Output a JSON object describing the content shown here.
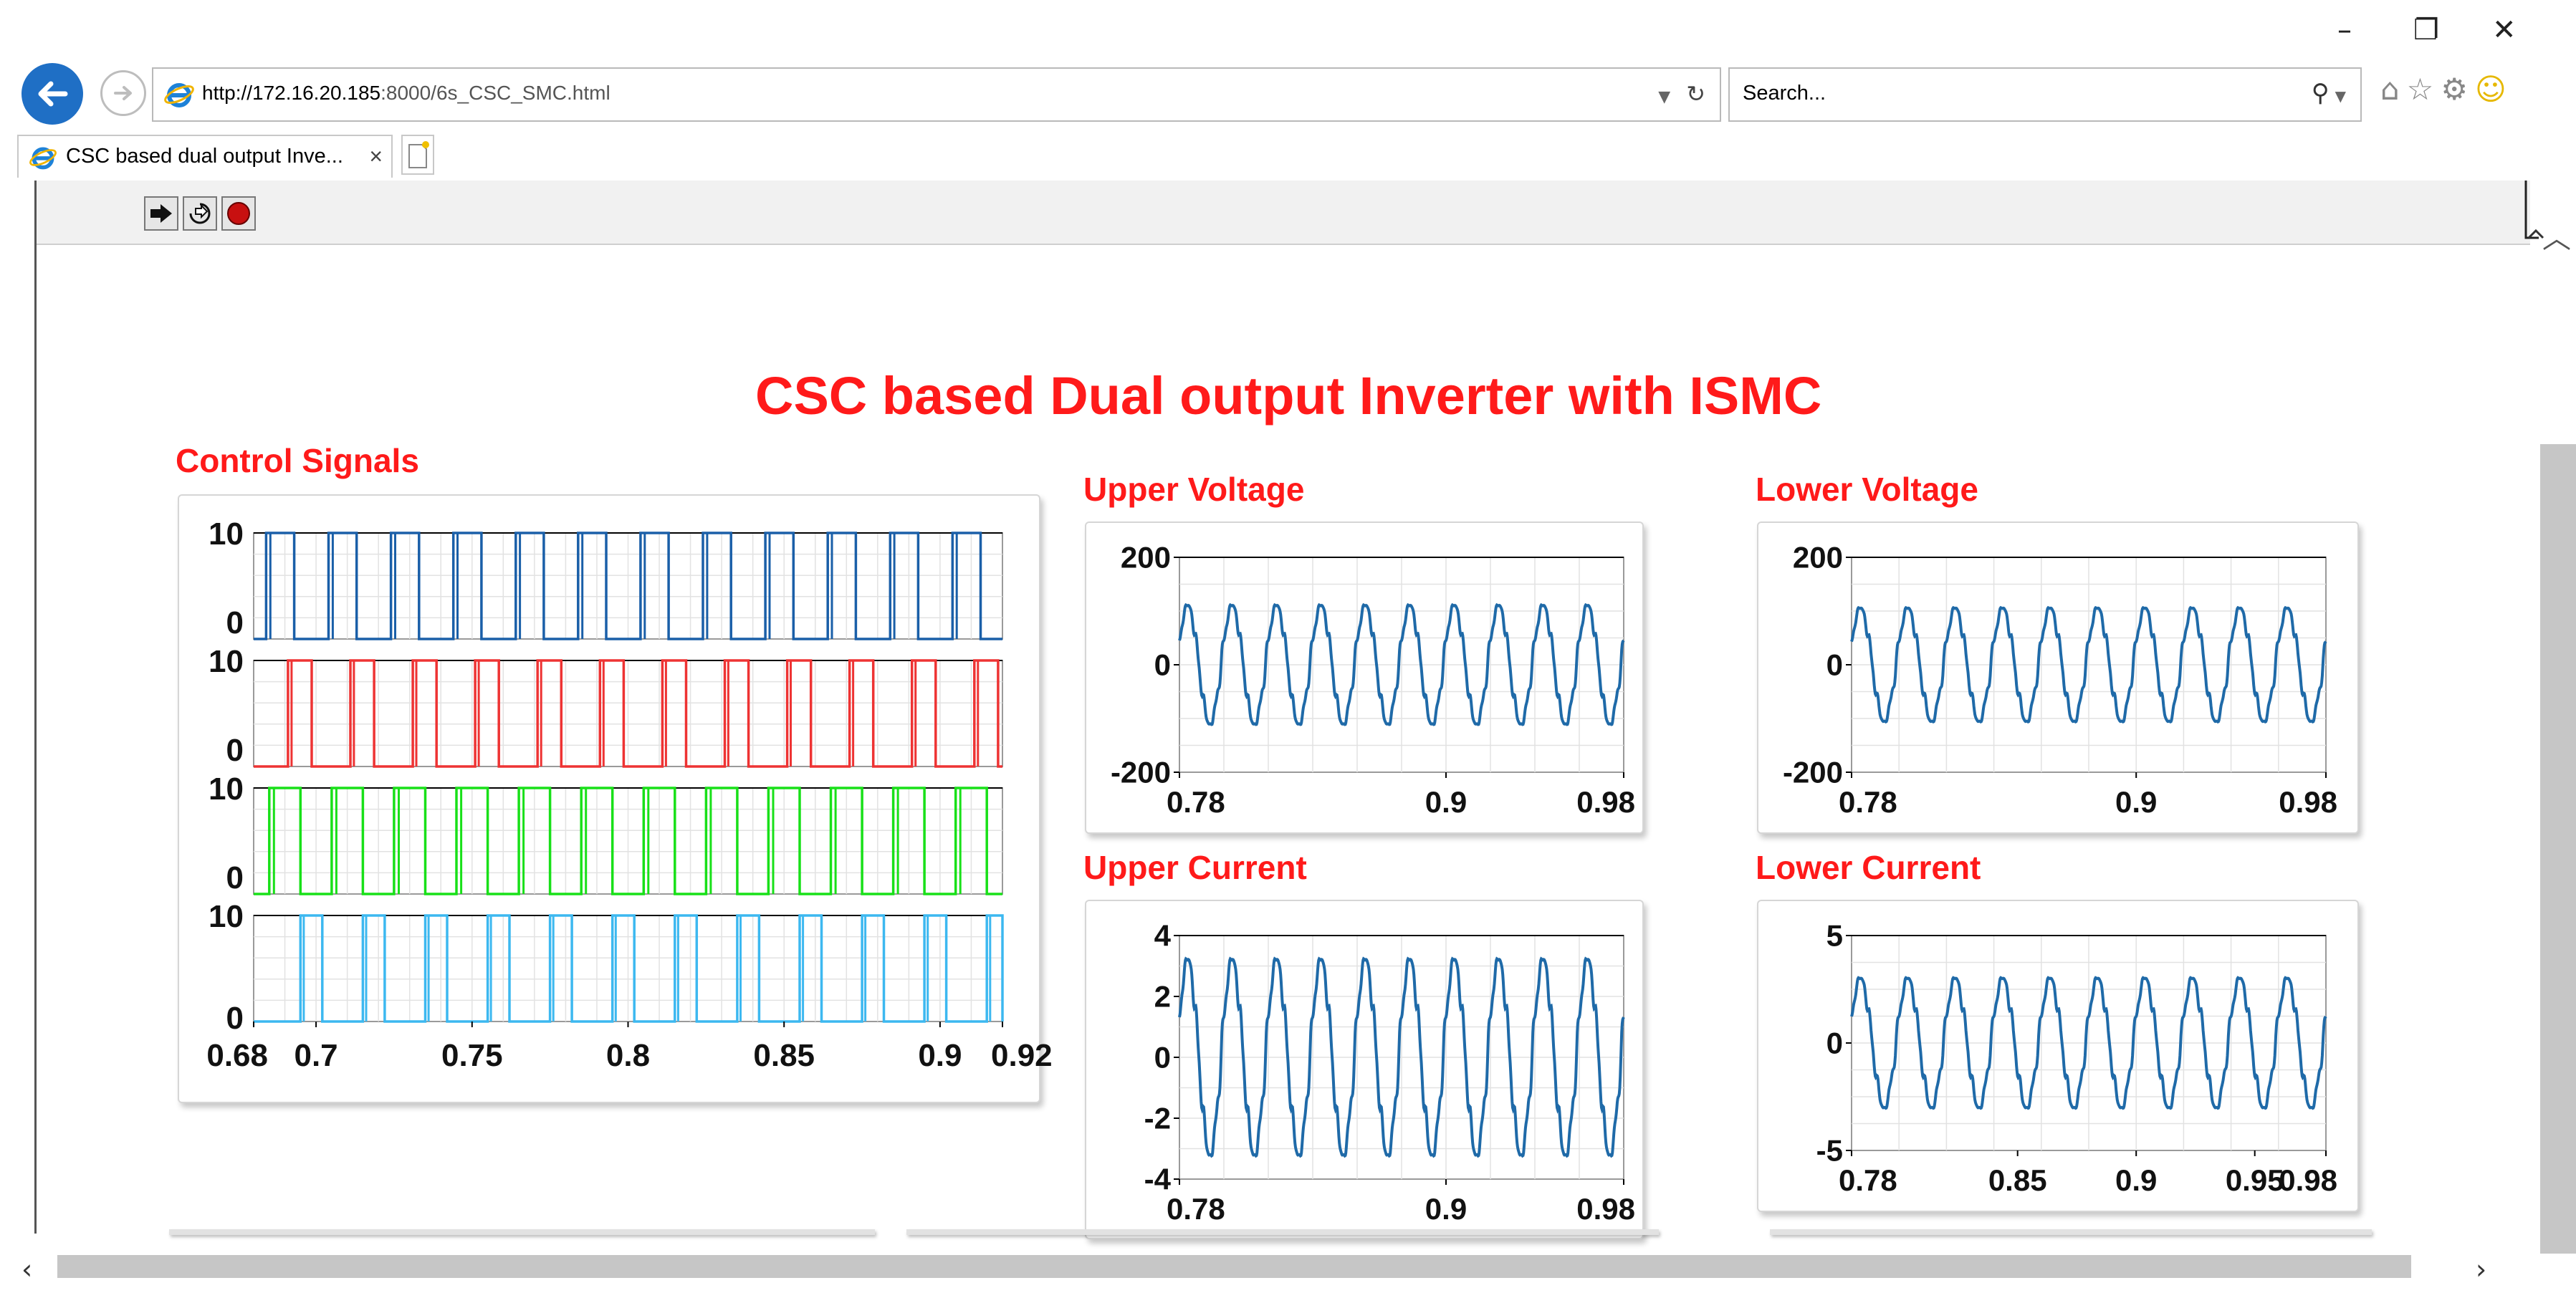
{
  "browser": {
    "url_host": "http://172.16.20.185",
    "url_rest": ":8000/6s_CSC_SMC.html",
    "search_placeholder": "Search...",
    "tab_title": "CSC based dual output Inve...",
    "tab_close": "×"
  },
  "page": {
    "title": "CSC based Dual output Inverter with ISMC",
    "labels": {
      "control": "Control Signals",
      "upper_voltage": "Upper Voltage",
      "lower_voltage": "Lower Voltage",
      "upper_current": "Upper Current",
      "lower_current": "Lower Current"
    }
  },
  "chart_data": [
    {
      "id": "control",
      "type": "line",
      "title": "Control Signals",
      "x_ticks": [
        "0.68",
        "0.7",
        "0.75",
        "0.8",
        "0.85",
        "0.9",
        "0.92"
      ],
      "xlim": [
        0.68,
        0.92
      ],
      "series": [
        {
          "color": "#1a5fa8",
          "ylim": [
            0,
            10
          ],
          "y_ticks": [
            "10",
            "0"
          ],
          "values": [
            0,
            10
          ]
        },
        {
          "color": "#ee3333",
          "ylim": [
            0,
            10
          ],
          "y_ticks": [
            "10",
            "0"
          ],
          "values": [
            0,
            10
          ]
        },
        {
          "color": "#18e018",
          "ylim": [
            0,
            10
          ],
          "y_ticks": [
            "10",
            "0"
          ],
          "values": [
            0,
            10
          ]
        },
        {
          "color": "#3cb8f0",
          "ylim": [
            0,
            10
          ],
          "y_ticks": [
            "10",
            "0"
          ],
          "values": [
            0,
            10
          ]
        }
      ],
      "signal_period": 0.02
    },
    {
      "id": "upper_voltage",
      "type": "line",
      "title": "Upper Voltage",
      "xlim": [
        0.78,
        0.98
      ],
      "ylim": [
        -200,
        200
      ],
      "x_ticks": [
        "0.78",
        "0.9",
        "0.98"
      ],
      "y_ticks": [
        "200",
        "0",
        "-200"
      ],
      "series": [
        {
          "color": "#1f6aa8",
          "amplitude": 110,
          "period": 0.02
        }
      ]
    },
    {
      "id": "lower_voltage",
      "type": "line",
      "title": "Lower Voltage",
      "xlim": [
        0.78,
        0.98
      ],
      "ylim": [
        -200,
        200
      ],
      "x_ticks": [
        "0.78",
        "0.9",
        "0.98"
      ],
      "y_ticks": [
        "200",
        "0",
        "-200"
      ],
      "series": [
        {
          "color": "#1f6aa8",
          "amplitude": 105,
          "period": 0.02
        }
      ]
    },
    {
      "id": "upper_current",
      "type": "line",
      "title": "Upper Current",
      "xlim": [
        0.78,
        0.98
      ],
      "ylim": [
        -4,
        4
      ],
      "x_ticks": [
        "0.78",
        "0.9",
        "0.98"
      ],
      "y_ticks": [
        "4",
        "2",
        "0",
        "-2",
        "-4"
      ],
      "series": [
        {
          "color": "#1f6aa8",
          "amplitude": 3.2,
          "period": 0.02
        }
      ]
    },
    {
      "id": "lower_current",
      "type": "line",
      "title": "Lower Current",
      "xlim": [
        0.78,
        0.98
      ],
      "ylim": [
        -5,
        5
      ],
      "x_ticks": [
        "0.78",
        "0.85",
        "0.9",
        "0.95",
        "0.98"
      ],
      "y_ticks": [
        "5",
        "0",
        "-5"
      ],
      "series": [
        {
          "color": "#1f6aa8",
          "amplitude": 3.0,
          "period": 0.02
        }
      ]
    }
  ]
}
